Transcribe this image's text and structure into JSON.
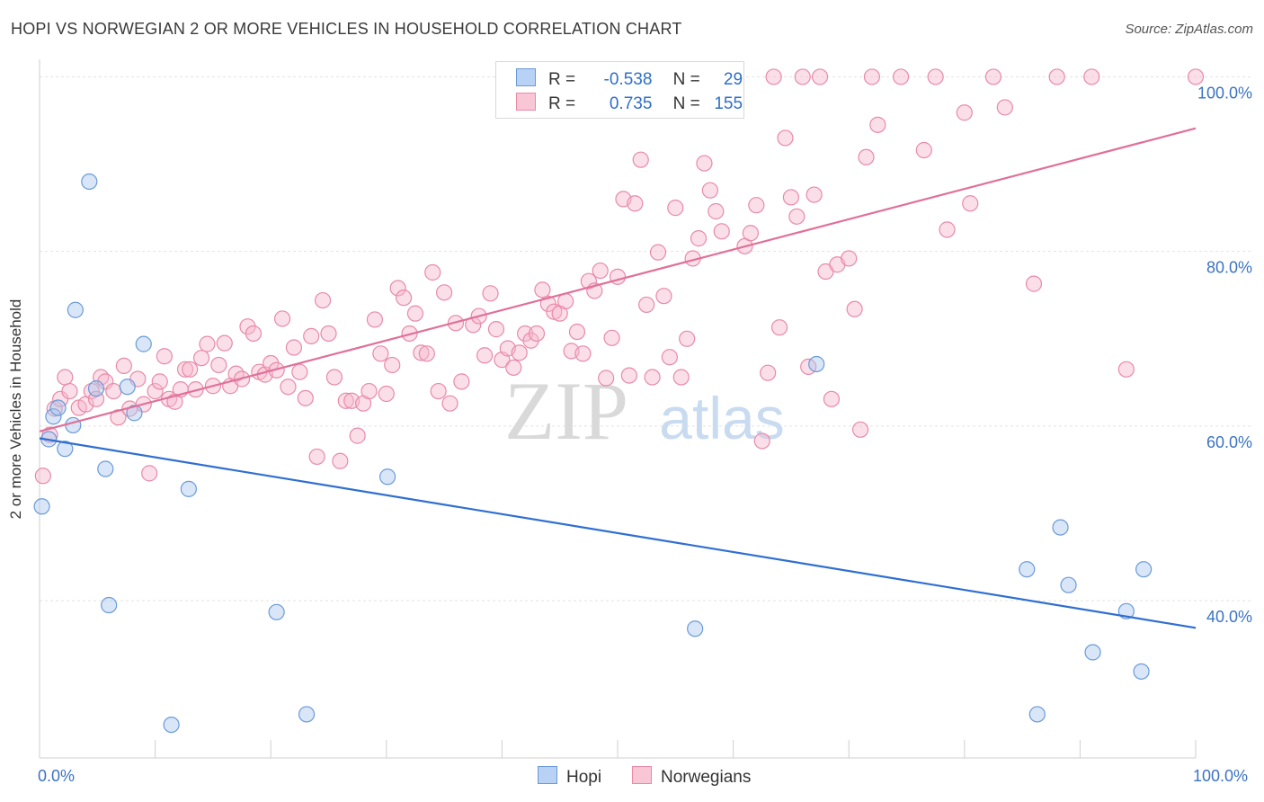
{
  "title": "HOPI VS NORWEGIAN 2 OR MORE VEHICLES IN HOUSEHOLD CORRELATION CHART",
  "source": "Source: ZipAtlas.com",
  "watermark": {
    "zip": "ZIP",
    "atlas": "atlas"
  },
  "legend": {
    "r_label": "R =",
    "n_label": "N =",
    "hopi": {
      "r": "-0.538",
      "n": "29"
    },
    "norwegian": {
      "r": "0.735",
      "n": "155"
    }
  },
  "bottom_legend": {
    "hopi": "Hopi",
    "norwegians": "Norwegians"
  },
  "colors": {
    "hopi_fill": "#a9c8f0",
    "hopi_stroke": "#6b9ad8",
    "hopi_line": "#2f6fd0",
    "norw_fill": "#f6b8cc",
    "norw_stroke": "#e88aa8",
    "norw_line": "#e0709a",
    "axis_text": "#3b73c4",
    "grid": "#e2e2e2"
  },
  "chart_data": {
    "type": "scatter",
    "ylabel": "2 or more Vehicles in Household",
    "xlim": [
      0,
      100
    ],
    "ylim": [
      22,
      102
    ],
    "x_tick_labels": [
      "0.0%",
      "100.0%"
    ],
    "y_ticks": [
      40,
      60,
      80,
      100
    ],
    "y_tick_labels": [
      "40.0%",
      "60.0%",
      "80.0%",
      "100.0%"
    ],
    "grid": "horizontal dashed",
    "series": [
      {
        "name": "Hopi",
        "points": [
          [
            0.2,
            50.8
          ],
          [
            0.8,
            58.5
          ],
          [
            1.2,
            61.1
          ],
          [
            1.6,
            62.1
          ],
          [
            2.2,
            57.4
          ],
          [
            2.9,
            60.1
          ],
          [
            3.1,
            73.3
          ],
          [
            4.3,
            88.0
          ],
          [
            5.7,
            55.1
          ],
          [
            4.9,
            64.3
          ],
          [
            6.0,
            39.5
          ],
          [
            7.6,
            64.5
          ],
          [
            8.2,
            61.5
          ],
          [
            9.0,
            69.4
          ],
          [
            11.4,
            25.8
          ],
          [
            12.9,
            52.8
          ],
          [
            20.5,
            38.7
          ],
          [
            23.1,
            27.0
          ],
          [
            30.1,
            54.2
          ],
          [
            56.7,
            36.8
          ],
          [
            67.2,
            67.1
          ],
          [
            85.4,
            43.6
          ],
          [
            86.3,
            27.0
          ],
          [
            88.3,
            48.4
          ],
          [
            89.0,
            41.8
          ],
          [
            91.1,
            34.1
          ],
          [
            94.0,
            38.8
          ],
          [
            95.3,
            31.9
          ],
          [
            95.5,
            43.6
          ]
        ],
        "trend": [
          [
            0,
            58.6
          ],
          [
            100,
            36.9
          ]
        ]
      },
      {
        "name": "Norwegians",
        "points": [
          [
            0.3,
            54.3
          ],
          [
            0.9,
            59.0
          ],
          [
            1.3,
            62.0
          ],
          [
            1.8,
            63.1
          ],
          [
            2.2,
            65.6
          ],
          [
            2.6,
            64.0
          ],
          [
            3.4,
            62.1
          ],
          [
            4.0,
            62.5
          ],
          [
            4.5,
            64.0
          ],
          [
            4.9,
            63.1
          ],
          [
            5.3,
            65.6
          ],
          [
            5.7,
            65.1
          ],
          [
            6.4,
            64.0
          ],
          [
            6.8,
            61.0
          ],
          [
            7.3,
            66.9
          ],
          [
            7.8,
            62.0
          ],
          [
            8.5,
            65.4
          ],
          [
            9.0,
            62.5
          ],
          [
            9.5,
            54.6
          ],
          [
            10.0,
            64.0
          ],
          [
            10.4,
            65.1
          ],
          [
            10.8,
            68.0
          ],
          [
            11.2,
            63.1
          ],
          [
            11.7,
            62.8
          ],
          [
            12.2,
            64.2
          ],
          [
            12.6,
            66.5
          ],
          [
            13.0,
            66.5
          ],
          [
            13.5,
            64.2
          ],
          [
            14.0,
            67.8
          ],
          [
            14.5,
            69.4
          ],
          [
            15.0,
            64.6
          ],
          [
            15.5,
            67.0
          ],
          [
            16.0,
            69.5
          ],
          [
            16.5,
            64.6
          ],
          [
            17.0,
            66.0
          ],
          [
            17.5,
            65.4
          ],
          [
            18.0,
            71.4
          ],
          [
            18.5,
            70.6
          ],
          [
            19.0,
            66.2
          ],
          [
            19.5,
            65.9
          ],
          [
            20.0,
            67.2
          ],
          [
            20.5,
            66.4
          ],
          [
            21.0,
            72.3
          ],
          [
            21.5,
            64.5
          ],
          [
            22.0,
            69.0
          ],
          [
            22.5,
            66.2
          ],
          [
            23.0,
            63.2
          ],
          [
            23.5,
            70.3
          ],
          [
            24.0,
            56.5
          ],
          [
            24.5,
            74.4
          ],
          [
            25.0,
            70.6
          ],
          [
            25.5,
            65.6
          ],
          [
            26.0,
            56.0
          ],
          [
            26.5,
            62.9
          ],
          [
            27.0,
            62.9
          ],
          [
            27.5,
            58.9
          ],
          [
            28.0,
            62.6
          ],
          [
            28.5,
            64.0
          ],
          [
            29.0,
            72.2
          ],
          [
            29.5,
            68.3
          ],
          [
            30.0,
            63.7
          ],
          [
            30.5,
            67.0
          ],
          [
            31.0,
            75.8
          ],
          [
            31.5,
            74.7
          ],
          [
            32.0,
            70.6
          ],
          [
            32.5,
            72.9
          ],
          [
            33.0,
            68.4
          ],
          [
            33.5,
            68.3
          ],
          [
            34.0,
            77.6
          ],
          [
            34.5,
            64.0
          ],
          [
            35.0,
            75.3
          ],
          [
            35.5,
            62.6
          ],
          [
            36.0,
            71.8
          ],
          [
            36.5,
            65.1
          ],
          [
            37.5,
            71.6
          ],
          [
            38.0,
            72.6
          ],
          [
            38.5,
            68.1
          ],
          [
            39.0,
            75.2
          ],
          [
            39.5,
            71.1
          ],
          [
            40.0,
            67.6
          ],
          [
            40.5,
            68.9
          ],
          [
            41.0,
            66.7
          ],
          [
            41.5,
            68.4
          ],
          [
            42.0,
            70.6
          ],
          [
            42.5,
            69.8
          ],
          [
            43.0,
            70.6
          ],
          [
            43.5,
            75.6
          ],
          [
            44.0,
            74.0
          ],
          [
            44.5,
            73.1
          ],
          [
            45.0,
            72.9
          ],
          [
            45.5,
            74.3
          ],
          [
            46.0,
            68.6
          ],
          [
            46.5,
            70.8
          ],
          [
            47.0,
            68.3
          ],
          [
            47.5,
            76.6
          ],
          [
            48.0,
            75.5
          ],
          [
            48.5,
            77.8
          ],
          [
            49.0,
            65.5
          ],
          [
            49.5,
            70.1
          ],
          [
            50.0,
            77.1
          ],
          [
            50.5,
            86.0
          ],
          [
            51.0,
            65.8
          ],
          [
            51.5,
            85.5
          ],
          [
            52.0,
            90.5
          ],
          [
            52.5,
            73.9
          ],
          [
            53.0,
            65.6
          ],
          [
            53.5,
            79.9
          ],
          [
            54.0,
            74.9
          ],
          [
            54.5,
            67.9
          ],
          [
            55.0,
            85.0
          ],
          [
            55.5,
            65.6
          ],
          [
            56.0,
            70.0
          ],
          [
            56.5,
            79.2
          ],
          [
            57.0,
            81.5
          ],
          [
            57.5,
            90.1
          ],
          [
            58.0,
            87.0
          ],
          [
            58.5,
            84.6
          ],
          [
            59.0,
            82.3
          ],
          [
            60.0,
            100.0
          ],
          [
            61.0,
            80.6
          ],
          [
            61.5,
            82.1
          ],
          [
            62.0,
            85.3
          ],
          [
            62.5,
            58.3
          ],
          [
            63.0,
            66.1
          ],
          [
            63.5,
            100.0
          ],
          [
            64.0,
            71.3
          ],
          [
            64.5,
            93.0
          ],
          [
            65.0,
            86.2
          ],
          [
            65.5,
            84.0
          ],
          [
            66.0,
            100.0
          ],
          [
            66.5,
            66.8
          ],
          [
            67.0,
            86.5
          ],
          [
            67.5,
            100.0
          ],
          [
            68.0,
            77.7
          ],
          [
            68.5,
            63.1
          ],
          [
            69.0,
            78.5
          ],
          [
            70.0,
            79.2
          ],
          [
            70.5,
            73.4
          ],
          [
            71.0,
            59.6
          ],
          [
            71.5,
            90.8
          ],
          [
            72.0,
            100.0
          ],
          [
            72.5,
            94.5
          ],
          [
            74.5,
            100.0
          ],
          [
            76.5,
            91.6
          ],
          [
            77.5,
            100.0
          ],
          [
            78.5,
            82.5
          ],
          [
            80.0,
            95.9
          ],
          [
            80.5,
            85.5
          ],
          [
            82.5,
            100.0
          ],
          [
            83.5,
            96.5
          ],
          [
            86.0,
            76.3
          ],
          [
            88.0,
            100.0
          ],
          [
            91.0,
            100.0
          ],
          [
            94.0,
            66.5
          ],
          [
            100.0,
            100.0
          ]
        ],
        "trend": [
          [
            0,
            59.4
          ],
          [
            100,
            94.1
          ]
        ]
      }
    ]
  }
}
